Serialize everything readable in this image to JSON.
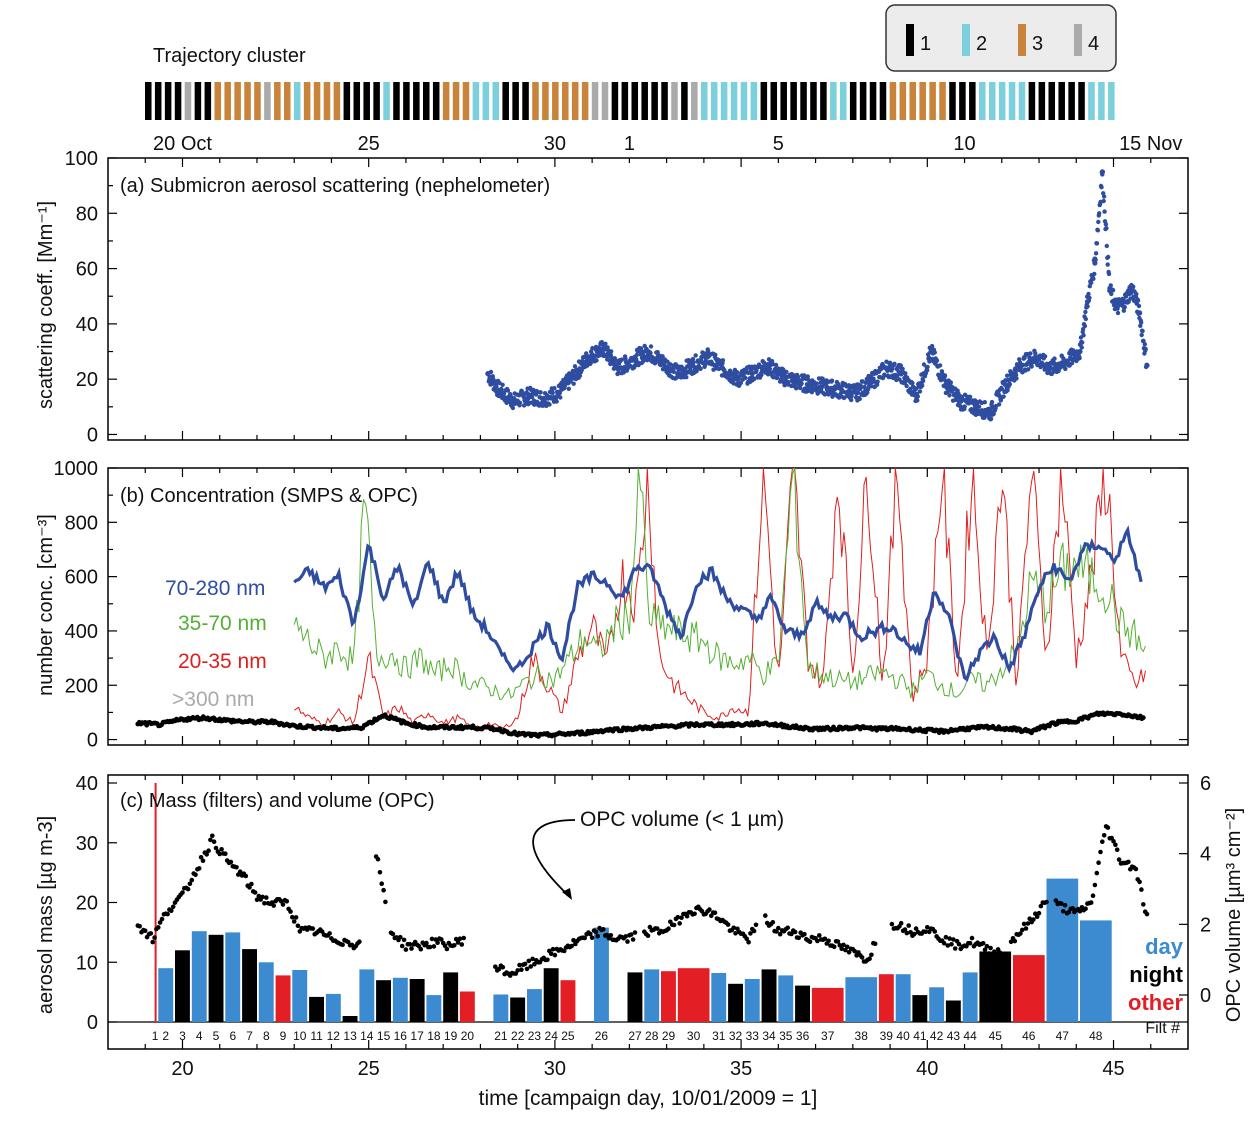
{
  "trajectory": {
    "title": "Trajectory cluster",
    "legend": [
      {
        "label": "1",
        "color": "#000000"
      },
      {
        "label": "2",
        "color": "#7ccfdc"
      },
      {
        "label": "3",
        "color": "#c8843a"
      },
      {
        "label": "4",
        "color": "#aaaaaa"
      }
    ],
    "sequence": [
      1,
      1,
      1,
      1,
      4,
      1,
      1,
      3,
      3,
      3,
      3,
      3,
      4,
      3,
      3,
      2,
      3,
      3,
      3,
      3,
      1,
      1,
      1,
      1,
      2,
      1,
      1,
      1,
      1,
      1,
      3,
      3,
      3,
      2,
      2,
      2,
      1,
      1,
      1,
      3,
      3,
      3,
      3,
      3,
      3,
      4,
      4,
      1,
      1,
      1,
      1,
      1,
      1,
      4,
      1,
      4,
      2,
      2,
      2,
      2,
      2,
      2,
      1,
      1,
      1,
      1,
      1,
      1,
      1,
      2,
      2,
      1,
      1,
      1,
      1,
      3,
      3,
      3,
      3,
      3,
      3,
      1,
      1,
      1,
      2,
      2,
      2,
      2,
      2,
      1,
      1,
      1,
      1,
      1,
      1,
      2,
      2,
      2
    ],
    "date_ticks": [
      {
        "day": 20,
        "label": "20 Oct"
      },
      {
        "day": 25,
        "label": "25"
      },
      {
        "day": 30,
        "label": "30"
      },
      {
        "day": 32,
        "label": "1"
      },
      {
        "day": 36,
        "label": "5"
      },
      {
        "day": 41,
        "label": "10"
      },
      {
        "day": 46,
        "label": "15 Nov"
      }
    ]
  },
  "chart_data": [
    {
      "type": "scatter",
      "title": "(a)  Submicron aerosol scattering (nephelometer)",
      "ylabel": "scattering coeff. [Mm⁻¹]",
      "xlim": [
        18,
        47
      ],
      "ylim": [
        -2,
        100
      ],
      "yticks": [
        0,
        20,
        40,
        60,
        80,
        100
      ],
      "series": [
        {
          "color": "#2f4da0",
          "x": [
            28.2,
            28.5,
            28.9,
            29.3,
            29.7,
            30.1,
            30.5,
            30.9,
            31.3,
            31.7,
            32.1,
            32.5,
            32.9,
            33.3,
            33.7,
            34.1,
            34.5,
            34.9,
            35.3,
            35.7,
            36.1,
            36.5,
            36.9,
            37.3,
            37.7,
            38.1,
            38.5,
            38.9,
            39.3,
            39.7,
            40.1,
            40.5,
            40.9,
            41.3,
            41.7,
            42.1,
            42.5,
            42.9,
            43.3,
            43.7,
            44.1,
            44.3,
            44.5,
            44.7,
            44.9,
            45.1,
            45.3,
            45.5,
            45.7,
            45.9
          ],
          "y": [
            22,
            16,
            12,
            14,
            13,
            15,
            21,
            28,
            31,
            24,
            27,
            30,
            26,
            22,
            25,
            28,
            24,
            20,
            22,
            25,
            21,
            19,
            18,
            17,
            16,
            15,
            19,
            24,
            22,
            14,
            30,
            18,
            12,
            10,
            8,
            18,
            25,
            28,
            24,
            26,
            30,
            48,
            62,
            95,
            52,
            46,
            48,
            53,
            44,
            25
          ]
        }
      ]
    },
    {
      "type": "line",
      "title": "(b)  Concentration (SMPS & OPC)",
      "ylabel": "number conc. [cm⁻³]",
      "xlim": [
        18,
        47
      ],
      "ylim": [
        -20,
        1000
      ],
      "yticks": [
        0,
        200,
        400,
        600,
        800,
        1000
      ],
      "series": [
        {
          "name": "70-280 nm",
          "color": "#2f4da0",
          "x": [
            23.0,
            23.4,
            23.8,
            24.2,
            24.6,
            25.0,
            25.4,
            25.8,
            26.2,
            26.6,
            27.0,
            27.4,
            27.8,
            28.2,
            28.6,
            29.0,
            29.4,
            29.8,
            30.2,
            30.6,
            31.0,
            31.4,
            31.8,
            32.2,
            32.6,
            33.0,
            33.4,
            33.8,
            34.2,
            34.6,
            35.0,
            35.4,
            35.8,
            36.2,
            36.6,
            37.0,
            37.4,
            37.8,
            38.2,
            38.6,
            39.0,
            39.4,
            39.8,
            40.2,
            40.6,
            41.0,
            41.4,
            41.8,
            42.2,
            42.6,
            43.0,
            43.4,
            43.8,
            44.2,
            44.6,
            45.0,
            45.4,
            45.8
          ],
          "y": [
            580,
            620,
            560,
            600,
            420,
            720,
            520,
            640,
            480,
            660,
            500,
            620,
            460,
            400,
            300,
            260,
            340,
            420,
            300,
            560,
            600,
            580,
            520,
            640,
            620,
            480,
            380,
            580,
            620,
            520,
            480,
            440,
            520,
            400,
            380,
            500,
            450,
            460,
            380,
            400,
            420,
            360,
            320,
            560,
            440,
            220,
            320,
            380,
            260,
            380,
            560,
            640,
            580,
            700,
            720,
            660,
            760,
            540
          ]
        },
        {
          "name": "35-70 nm",
          "color": "#54b033",
          "x": [
            23.0,
            23.4,
            23.8,
            24.2,
            24.6,
            24.9,
            25.2,
            25.6,
            26.0,
            26.4,
            26.8,
            27.2,
            27.6,
            28.0,
            28.4,
            28.8,
            29.2,
            29.6,
            30.0,
            30.4,
            30.8,
            31.2,
            31.6,
            32.0,
            32.3,
            32.5,
            32.8,
            33.2,
            33.6,
            34.0,
            34.4,
            34.8,
            35.2,
            35.6,
            36.0,
            36.4,
            36.8,
            37.2,
            37.6,
            38.0,
            38.4,
            38.8,
            39.2,
            39.6,
            40.0,
            40.4,
            40.8,
            41.2,
            41.6,
            42.0,
            42.4,
            42.8,
            43.2,
            43.6,
            44.0,
            44.4,
            44.8,
            45.2,
            45.6,
            45.9
          ],
          "y": [
            420,
            360,
            300,
            340,
            280,
            880,
            300,
            320,
            260,
            300,
            240,
            280,
            220,
            200,
            180,
            160,
            210,
            240,
            220,
            300,
            380,
            320,
            420,
            460,
            980,
            460,
            420,
            400,
            380,
            360,
            300,
            280,
            300,
            240,
            280,
            1000,
            260,
            240,
            220,
            210,
            230,
            250,
            220,
            180,
            240,
            200,
            170,
            220,
            200,
            260,
            320,
            580,
            500,
            620,
            640,
            600,
            560,
            420,
            380,
            300
          ]
        },
        {
          "name": "20-35 nm",
          "color": "#e01e1e",
          "x": [
            23.0,
            23.4,
            23.8,
            24.2,
            24.6,
            25.0,
            25.4,
            25.8,
            26.2,
            26.6,
            27.0,
            27.4,
            27.8,
            28.2,
            28.6,
            29.0,
            29.4,
            29.8,
            30.2,
            30.6,
            31.0,
            31.4,
            31.8,
            32.2,
            32.5,
            32.8,
            33.2,
            33.6,
            34.0,
            34.4,
            34.8,
            35.2,
            35.6,
            36.0,
            36.4,
            36.8,
            37.2,
            37.6,
            38.0,
            38.4,
            38.8,
            39.2,
            39.6,
            40.0,
            40.4,
            40.8,
            41.2,
            41.6,
            42.0,
            42.4,
            42.8,
            43.2,
            43.6,
            44.0,
            44.4,
            44.8,
            45.2,
            45.6,
            45.9
          ],
          "y": [
            120,
            80,
            60,
            100,
            60,
            300,
            80,
            120,
            60,
            100,
            60,
            80,
            40,
            60,
            40,
            80,
            300,
            200,
            100,
            300,
            420,
            280,
            600,
            500,
            1000,
            300,
            200,
            150,
            100,
            80,
            120,
            100,
            1000,
            200,
            1000,
            300,
            200,
            1000,
            250,
            1000,
            200,
            1000,
            150,
            300,
            1000,
            200,
            1000,
            300,
            1000,
            200,
            1000,
            300,
            1000,
            300,
            600,
            1000,
            300,
            200,
            250
          ]
        },
        {
          "name": ">300 nm",
          "color": "#000000",
          "x": [
            18.8,
            19.4,
            20.0,
            20.6,
            21.2,
            21.8,
            22.4,
            23.0,
            23.6,
            24.2,
            24.8,
            25.4,
            26.0,
            26.6,
            27.2,
            27.8,
            28.4,
            29.0,
            29.6,
            30.2,
            30.8,
            31.4,
            32.0,
            32.6,
            33.2,
            33.8,
            34.4,
            35.0,
            35.6,
            36.2,
            36.8,
            37.4,
            38.0,
            38.6,
            39.2,
            39.8,
            40.4,
            41.0,
            41.6,
            42.2,
            42.8,
            43.4,
            44.0,
            44.6,
            45.2,
            45.8
          ],
          "y": [
            60,
            55,
            75,
            80,
            70,
            65,
            65,
            50,
            45,
            40,
            45,
            90,
            60,
            45,
            45,
            45,
            40,
            20,
            15,
            20,
            25,
            35,
            40,
            45,
            50,
            55,
            55,
            55,
            60,
            50,
            40,
            40,
            45,
            40,
            40,
            35,
            30,
            40,
            45,
            40,
            30,
            60,
            70,
            95,
            95,
            80
          ]
        }
      ]
    },
    {
      "type": "bar",
      "title": "(c)  Mass (filters) and volume (OPC)",
      "ylabel": "aerosol mass [µg m-3]",
      "y2label": "OPC volume [µm³ cm⁻²]",
      "xlabel": "time [campaign day, 10/01/2009 = 1]",
      "xlim": [
        18,
        47
      ],
      "ylim": [
        -0.5,
        40
      ],
      "yticks": [
        0,
        10,
        20,
        30,
        40
      ],
      "y2lim": [
        -0.6,
        6
      ],
      "y2ticks": [
        0,
        2,
        4,
        6
      ],
      "xticks": [
        20,
        25,
        30,
        35,
        40,
        45
      ],
      "filter_label": "Filt #",
      "annotation": "OPC volume (< 1 µm)",
      "bar_legend": [
        {
          "label": "day",
          "color": "#3c8ad0"
        },
        {
          "label": "night",
          "color": "#000000"
        },
        {
          "label": "other",
          "color": "#e31e24"
        }
      ],
      "categories": [
        "1",
        "2",
        "3",
        "4",
        "5",
        "6",
        "7",
        "8",
        "9",
        "10",
        "11",
        "12",
        "13",
        "14",
        "15",
        "16",
        "17",
        "18",
        "19",
        "20",
        "21",
        "22",
        "23",
        "24",
        "25",
        "26",
        "27",
        "28",
        "29",
        "30",
        "31",
        "32",
        "33",
        "34",
        "35",
        "36",
        "37",
        "38",
        "39",
        "40",
        "41",
        "42",
        "43",
        "44",
        "45",
        "46",
        "47",
        "48"
      ],
      "day_start": [
        19.25,
        19.35,
        19.8,
        20.25,
        20.7,
        21.15,
        21.6,
        22.05,
        22.5,
        22.95,
        23.4,
        23.85,
        24.3,
        24.75,
        25.2,
        25.65,
        26.1,
        26.55,
        27.0,
        27.45,
        28.35,
        28.8,
        29.25,
        29.7,
        30.15,
        31.05,
        31.95,
        32.4,
        32.85,
        33.3,
        34.2,
        34.65,
        35.1,
        35.55,
        36.0,
        36.45,
        36.9,
        37.8,
        38.7,
        39.15,
        39.6,
        40.05,
        40.5,
        40.95,
        41.4,
        42.3,
        43.2,
        44.1
      ],
      "day_end": [
        19.28,
        19.75,
        20.2,
        20.65,
        21.1,
        21.55,
        22.0,
        22.45,
        22.9,
        23.35,
        23.8,
        24.25,
        24.7,
        25.15,
        25.6,
        26.05,
        26.5,
        26.95,
        27.4,
        27.85,
        28.75,
        29.2,
        29.65,
        30.1,
        30.55,
        31.45,
        32.35,
        32.8,
        33.25,
        34.15,
        34.6,
        35.05,
        35.5,
        35.95,
        36.4,
        36.85,
        37.75,
        38.65,
        39.1,
        39.55,
        40.0,
        40.45,
        40.9,
        41.35,
        42.25,
        43.15,
        44.05,
        44.95
      ],
      "values": [
        40,
        9,
        12,
        15.2,
        14.6,
        15,
        12.2,
        10,
        7.8,
        8.7,
        4.2,
        4.7,
        1,
        8.8,
        7,
        7.4,
        7.2,
        4.5,
        8.3,
        5.1,
        4.6,
        4.1,
        5.5,
        9,
        7,
        15.8,
        8.3,
        8.8,
        8.5,
        9,
        8.2,
        6.4,
        7.2,
        8.8,
        7.8,
        6.1,
        5.7,
        7.5,
        8,
        8,
        4.5,
        5.8,
        3.6,
        8.3,
        11.8,
        11.2,
        24,
        17
      ],
      "bar_type": [
        "other",
        "day",
        "night",
        "day",
        "night",
        "day",
        "night",
        "day",
        "other",
        "day",
        "night",
        "day",
        "night",
        "day",
        "night",
        "day",
        "night",
        "day",
        "night",
        "other",
        "day",
        "night",
        "day",
        "night",
        "other",
        "day",
        "night",
        "day",
        "other",
        "other",
        "day",
        "night",
        "day",
        "night",
        "day",
        "night",
        "other",
        "day",
        "other",
        "day",
        "night",
        "day",
        "night",
        "day",
        "night",
        "other",
        "day",
        "day"
      ],
      "opc_volume": {
        "color": "#000000",
        "x": [
          18.8,
          19.2,
          19.6,
          20.0,
          20.4,
          20.8,
          21.2,
          21.6,
          22.0,
          22.4,
          22.8,
          23.2,
          23.6,
          24.0,
          24.4,
          24.8,
          25.2,
          25.6,
          26.0,
          26.4,
          26.8,
          27.2,
          27.6,
          28.0,
          28.4,
          28.8,
          29.2,
          29.6,
          30.0,
          30.4,
          30.8,
          31.2,
          31.6,
          32.0,
          32.4,
          32.8,
          33.2,
          33.6,
          34.0,
          34.4,
          34.8,
          35.2,
          35.6,
          36.0,
          36.4,
          36.8,
          37.2,
          37.6,
          38.0,
          38.4,
          38.8,
          39.2,
          39.6,
          40.0,
          40.4,
          40.8,
          41.2,
          41.6,
          42.0,
          42.4,
          42.8,
          43.2,
          43.6,
          44.0,
          44.4,
          44.8,
          45.2,
          45.6,
          45.9
        ],
        "y": [
          2.0,
          1.6,
          2.4,
          2.8,
          3.6,
          4.4,
          3.8,
          3.4,
          2.8,
          2.6,
          2.6,
          1.8,
          1.8,
          1.6,
          1.5,
          1.4,
          4.0,
          1.8,
          1.4,
          1.4,
          1.5,
          1.4,
          1.6,
          1.8,
          0.8,
          0.6,
          0.8,
          1.0,
          1.2,
          1.4,
          1.6,
          1.8,
          1.6,
          1.6,
          1.8,
          1.8,
          2.0,
          2.4,
          2.4,
          2.2,
          1.8,
          1.6,
          2.2,
          1.8,
          1.8,
          1.6,
          1.6,
          1.4,
          1.2,
          1.0,
          2.0,
          2.0,
          1.8,
          1.9,
          1.6,
          1.4,
          1.5,
          1.3,
          1.2,
          1.7,
          2.1,
          2.7,
          2.5,
          2.3,
          2.6,
          4.8,
          3.8,
          3.6,
          2.2
        ]
      }
    }
  ]
}
